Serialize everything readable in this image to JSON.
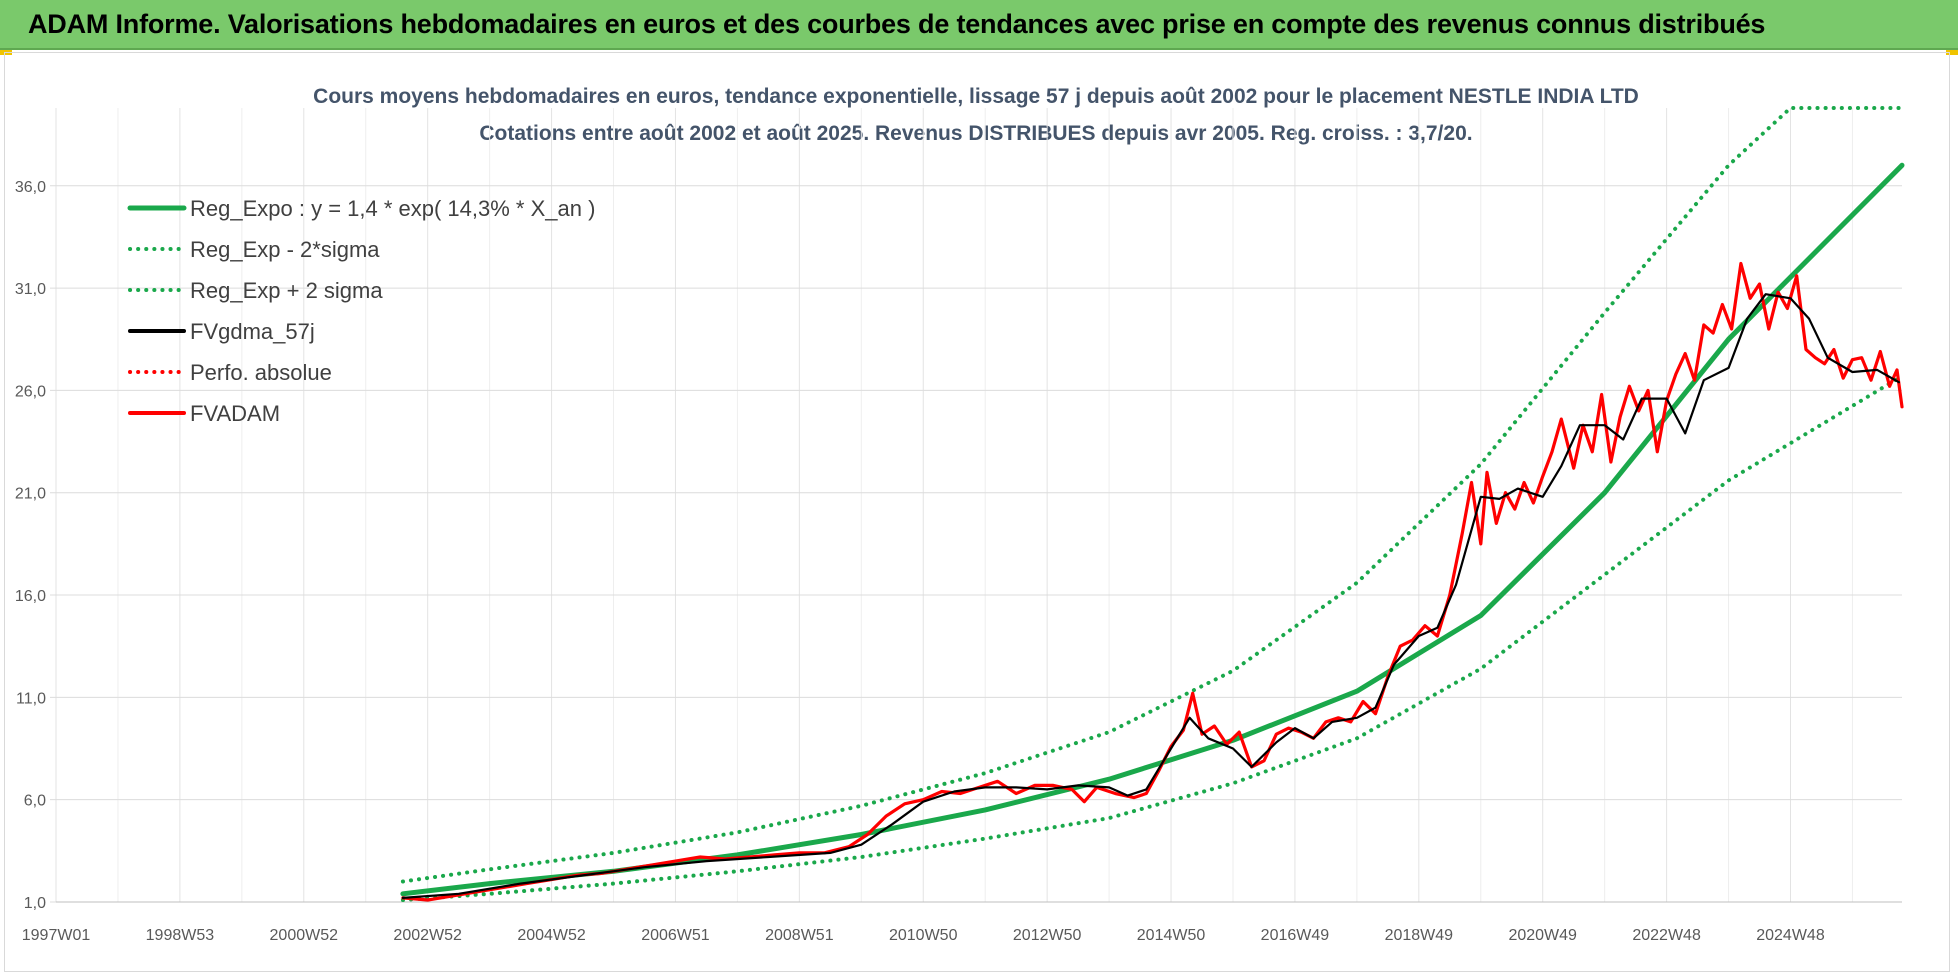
{
  "banner": {
    "title": "ADAM Informe. Valorisations hebdomadaires en euros et des courbes de tendances avec prise en compte des revenus connus distribués",
    "background": "#7ac96b"
  },
  "chart_data": {
    "type": "line",
    "title": "Cours moyens hebdomadaires en euros, tendance exponentielle, lissage 57 j depuis août 2002 pour le placement NESTLE INDIA LTD",
    "subtitle": "Cotations entre août 2002 et août 2025. Revenus DISTRIBUES depuis avr 2005. Reg. croiss. : 3,7/20.",
    "xlabel": "",
    "ylabel": "",
    "ylim": [
      1.0,
      39.8
    ],
    "xlim": [
      1997.0,
      2026.8
    ],
    "y_ticks": [
      "1,0",
      "6,0",
      "11,0",
      "16,0",
      "21,0",
      "26,0",
      "31,0",
      "36,0"
    ],
    "y_tick_values": [
      1,
      6,
      11,
      16,
      21,
      26,
      31,
      36
    ],
    "x_ticks": [
      "1997W01",
      "1998W53",
      "2000W52",
      "2002W52",
      "2004W52",
      "2006W51",
      "2008W51",
      "2010W50",
      "2012W50",
      "2014W50",
      "2016W49",
      "2018W49",
      "2020W49",
      "2022W48",
      "2024W48"
    ],
    "x_tick_values": [
      1997.0,
      1999.0,
      2001.0,
      2003.0,
      2005.0,
      2007.0,
      2009.0,
      2011.0,
      2013.0,
      2015.0,
      2017.0,
      2019.0,
      2021.0,
      2023.0,
      2025.0
    ],
    "grid": true,
    "legend_position": "top-left",
    "series": [
      {
        "name": "Reg_Expo : y = 1,4 * exp( 14,3% *  X_an )",
        "color": "#1aa84b",
        "style": "solid",
        "x": [
          2002.6,
          2004,
          2006,
          2008,
          2010,
          2012,
          2014,
          2016,
          2018,
          2020,
          2022,
          2024,
          2026.8
        ],
        "y": [
          1.4,
          1.9,
          2.5,
          3.3,
          4.3,
          5.5,
          7.0,
          8.9,
          11.3,
          15.0,
          21.0,
          28.5,
          37.0
        ]
      },
      {
        "name": "Reg_Exp - 2*sigma",
        "color": "#1aa84b",
        "style": "dotted",
        "x": [
          2002.6,
          2004,
          2006,
          2008,
          2010,
          2012,
          2014,
          2016,
          2018,
          2020,
          2022,
          2024,
          2026.8
        ],
        "y": [
          1.1,
          1.4,
          1.9,
          2.5,
          3.2,
          4.1,
          5.1,
          6.8,
          9.0,
          12.4,
          17.0,
          21.6,
          26.7
        ]
      },
      {
        "name": "Reg_Exp + 2 sigma",
        "color": "#1aa84b",
        "style": "dotted",
        "x": [
          2002.6,
          2004,
          2006,
          2008,
          2010,
          2012,
          2014,
          2016,
          2018,
          2020,
          2022,
          2024,
          2025.0,
          2026.8
        ],
        "y": [
          2.0,
          2.6,
          3.4,
          4.4,
          5.7,
          7.3,
          9.3,
          12.3,
          16.6,
          22.4,
          29.8,
          37.0,
          39.8,
          39.8
        ]
      },
      {
        "name": "FVgdma_57j",
        "color": "#000000",
        "style": "solid",
        "x": [
          2002.6,
          2003.5,
          2004.5,
          2005.5,
          2006.5,
          2007.5,
          2008.5,
          2009.5,
          2010.0,
          2010.5,
          2011.0,
          2011.5,
          2012.0,
          2012.5,
          2013.0,
          2013.5,
          2014.0,
          2014.3,
          2014.6,
          2015.0,
          2015.3,
          2015.6,
          2016.0,
          2016.3,
          2016.7,
          2017.0,
          2017.3,
          2017.6,
          2018.0,
          2018.3,
          2018.6,
          2019.0,
          2019.3,
          2019.6,
          2020.0,
          2020.3,
          2020.6,
          2021.0,
          2021.3,
          2021.6,
          2022.0,
          2022.3,
          2022.6,
          2023.0,
          2023.3,
          2023.6,
          2024.0,
          2024.3,
          2024.6,
          2025.0,
          2025.3,
          2025.6,
          2026.0,
          2026.4,
          2026.75
        ],
        "y": [
          1.2,
          1.4,
          1.9,
          2.3,
          2.7,
          3.0,
          3.2,
          3.4,
          3.8,
          4.8,
          5.9,
          6.4,
          6.6,
          6.6,
          6.5,
          6.7,
          6.6,
          6.2,
          6.5,
          8.5,
          10.0,
          9.0,
          8.5,
          7.6,
          8.8,
          9.5,
          9.0,
          9.8,
          10.0,
          10.5,
          12.6,
          14.0,
          14.4,
          16.5,
          20.8,
          20.7,
          21.2,
          20.8,
          22.3,
          24.3,
          24.3,
          23.6,
          25.6,
          25.6,
          23.9,
          26.5,
          27.1,
          29.5,
          30.7,
          30.5,
          29.5,
          27.6,
          26.9,
          27.0,
          26.4
        ]
      },
      {
        "name": "Perfo. absolue",
        "color": "#ff0000",
        "style": "dotted",
        "x": [],
        "y": []
      },
      {
        "name": "FVADAM",
        "color": "#ff0000",
        "style": "solid",
        "x": [
          2002.6,
          2003.0,
          2003.4,
          2003.8,
          2004.2,
          2004.6,
          2005.0,
          2005.4,
          2005.8,
          2006.2,
          2006.6,
          2007.0,
          2007.4,
          2007.8,
          2008.2,
          2008.6,
          2009.0,
          2009.4,
          2009.8,
          2010.1,
          2010.4,
          2010.7,
          2011.0,
          2011.3,
          2011.6,
          2011.9,
          2012.2,
          2012.5,
          2012.8,
          2013.1,
          2013.4,
          2013.6,
          2013.8,
          2014.1,
          2014.4,
          2014.6,
          2014.8,
          2015.0,
          2015.2,
          2015.35,
          2015.5,
          2015.7,
          2015.9,
          2016.1,
          2016.3,
          2016.5,
          2016.7,
          2016.9,
          2017.1,
          2017.3,
          2017.5,
          2017.7,
          2017.9,
          2018.1,
          2018.3,
          2018.5,
          2018.7,
          2018.9,
          2019.1,
          2019.3,
          2019.5,
          2019.7,
          2019.85,
          2020.0,
          2020.1,
          2020.25,
          2020.4,
          2020.55,
          2020.7,
          2020.85,
          2021.0,
          2021.15,
          2021.3,
          2021.5,
          2021.65,
          2021.8,
          2021.95,
          2022.1,
          2022.25,
          2022.4,
          2022.55,
          2022.7,
          2022.85,
          2023.0,
          2023.15,
          2023.3,
          2023.45,
          2023.6,
          2023.75,
          2023.9,
          2024.05,
          2024.2,
          2024.35,
          2024.5,
          2024.65,
          2024.8,
          2024.95,
          2025.1,
          2025.25,
          2025.4,
          2025.55,
          2025.7,
          2025.85,
          2026.0,
          2026.15,
          2026.3,
          2026.45,
          2026.6,
          2026.72,
          2026.8
        ],
        "y": [
          1.2,
          1.1,
          1.3,
          1.5,
          1.7,
          1.9,
          2.1,
          2.3,
          2.4,
          2.6,
          2.8,
          3.0,
          3.2,
          3.1,
          3.2,
          3.3,
          3.4,
          3.4,
          3.7,
          4.3,
          5.2,
          5.8,
          6.0,
          6.4,
          6.3,
          6.6,
          6.9,
          6.3,
          6.7,
          6.7,
          6.5,
          5.9,
          6.6,
          6.3,
          6.1,
          6.3,
          7.4,
          8.6,
          9.4,
          11.2,
          9.2,
          9.6,
          8.7,
          9.3,
          7.6,
          7.9,
          9.2,
          9.5,
          9.3,
          9.0,
          9.8,
          10.0,
          9.8,
          10.8,
          10.2,
          12.0,
          13.5,
          13.8,
          14.5,
          14.0,
          16.0,
          19.0,
          21.5,
          18.5,
          22.0,
          19.5,
          21.0,
          20.2,
          21.5,
          20.5,
          21.8,
          23.0,
          24.6,
          22.2,
          24.3,
          23.0,
          25.8,
          22.5,
          24.7,
          26.2,
          25.0,
          26.0,
          23.0,
          25.5,
          26.8,
          27.8,
          26.5,
          29.2,
          28.8,
          30.2,
          29.0,
          32.2,
          30.5,
          31.2,
          29.0,
          30.8,
          30.0,
          31.6,
          28.0,
          27.6,
          27.3,
          28.0,
          26.6,
          27.5,
          27.6,
          26.5,
          27.9,
          26.2,
          27.0,
          25.2
        ]
      }
    ]
  }
}
